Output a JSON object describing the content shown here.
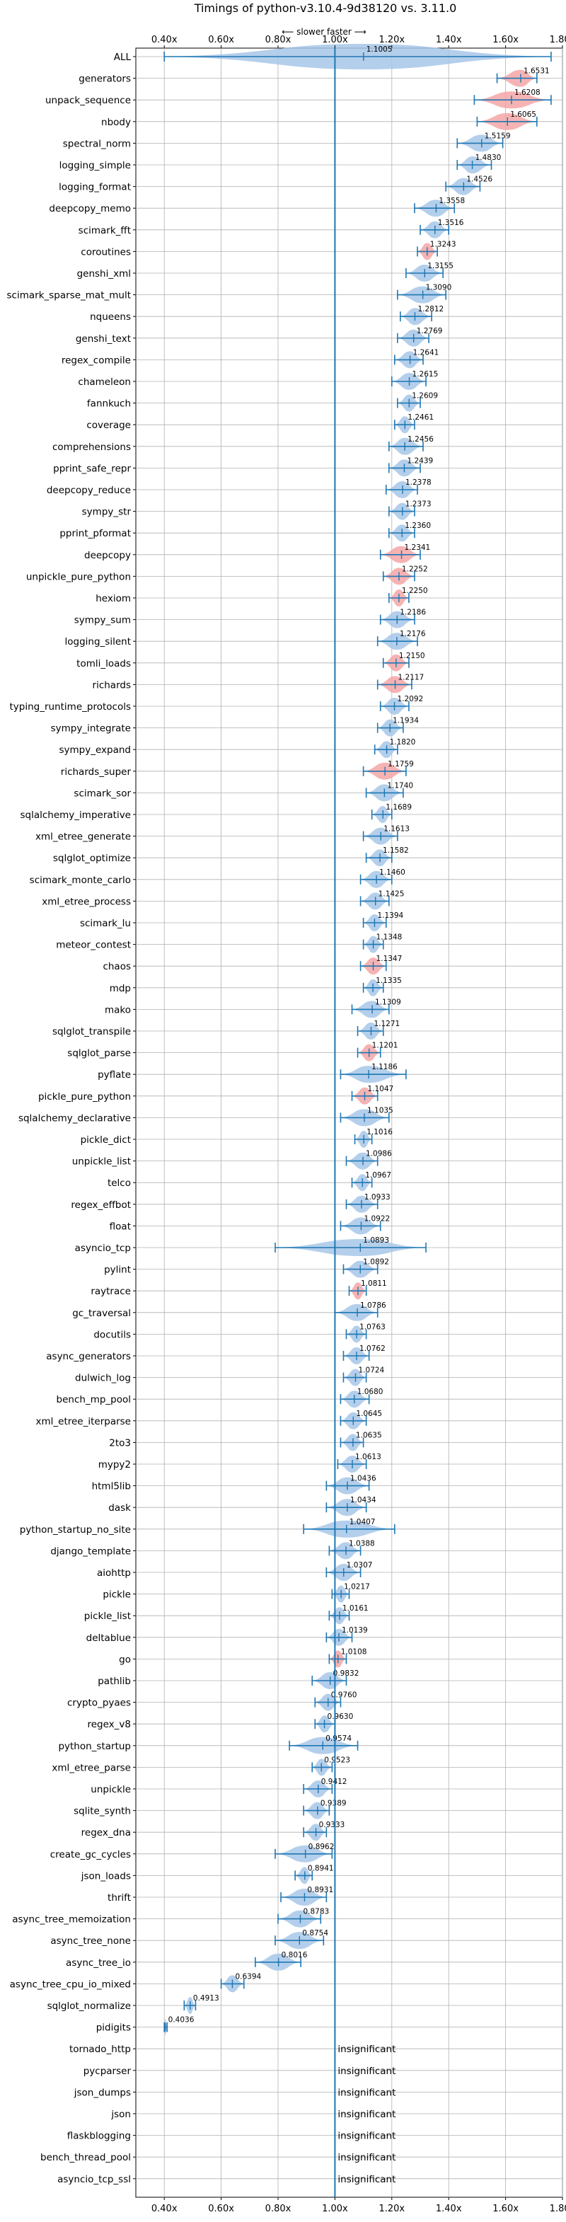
{
  "chart_data": {
    "type": "violin",
    "title": "Timings of python-v3.10.4-9d38120 vs. 3.11.0",
    "subtitle": "⟵ slower   faster ⟶",
    "xlim": [
      0.3,
      1.8
    ],
    "x_ticks": [
      0.4,
      0.6,
      0.8,
      1.0,
      1.2,
      1.4,
      1.6,
      1.8
    ],
    "x_tick_labels": [
      "0.40x",
      "0.60x",
      "0.80x",
      "1.00x",
      "1.20x",
      "1.40x",
      "1.60x",
      "1.80x"
    ],
    "reference_line": 1.0,
    "grid": true,
    "colors": {
      "faster": "#a7c7e7",
      "slower": "#f4a6a6",
      "line": "#1f77b4"
    },
    "insignificant_label": "insignificant",
    "benchmarks": [
      {
        "name": "ALL",
        "value": 1.1005,
        "range": [
          0.4,
          1.76
        ],
        "color": "blue"
      },
      {
        "name": "generators",
        "value": 1.6531,
        "range": [
          1.57,
          1.71
        ],
        "color": "red"
      },
      {
        "name": "unpack_sequence",
        "value": 1.6208,
        "range": [
          1.49,
          1.76
        ],
        "color": "red"
      },
      {
        "name": "nbody",
        "value": 1.6065,
        "range": [
          1.5,
          1.71
        ],
        "color": "red"
      },
      {
        "name": "spectral_norm",
        "value": 1.5159,
        "range": [
          1.43,
          1.59
        ],
        "color": "blue"
      },
      {
        "name": "logging_simple",
        "value": 1.483,
        "range": [
          1.43,
          1.55
        ],
        "color": "blue"
      },
      {
        "name": "logging_format",
        "value": 1.4526,
        "range": [
          1.39,
          1.51
        ],
        "color": "blue"
      },
      {
        "name": "deepcopy_memo",
        "value": 1.3558,
        "range": [
          1.28,
          1.42
        ],
        "color": "blue"
      },
      {
        "name": "scimark_fft",
        "value": 1.3516,
        "range": [
          1.3,
          1.4
        ],
        "color": "blue"
      },
      {
        "name": "coroutines",
        "value": 1.3243,
        "range": [
          1.29,
          1.36
        ],
        "color": "red"
      },
      {
        "name": "genshi_xml",
        "value": 1.3155,
        "range": [
          1.25,
          1.38
        ],
        "color": "blue"
      },
      {
        "name": "scimark_sparse_mat_mult",
        "value": 1.309,
        "range": [
          1.22,
          1.39
        ],
        "color": "blue"
      },
      {
        "name": "nqueens",
        "value": 1.2812,
        "range": [
          1.23,
          1.34
        ],
        "color": "blue"
      },
      {
        "name": "genshi_text",
        "value": 1.2769,
        "range": [
          1.22,
          1.33
        ],
        "color": "blue"
      },
      {
        "name": "regex_compile",
        "value": 1.2641,
        "range": [
          1.21,
          1.31
        ],
        "color": "blue"
      },
      {
        "name": "chameleon",
        "value": 1.2615,
        "range": [
          1.2,
          1.32
        ],
        "color": "blue"
      },
      {
        "name": "fannkuch",
        "value": 1.2609,
        "range": [
          1.22,
          1.3
        ],
        "color": "blue"
      },
      {
        "name": "coverage",
        "value": 1.2461,
        "range": [
          1.21,
          1.28
        ],
        "color": "blue"
      },
      {
        "name": "comprehensions",
        "value": 1.2456,
        "range": [
          1.19,
          1.31
        ],
        "color": "blue"
      },
      {
        "name": "pprint_safe_repr",
        "value": 1.2439,
        "range": [
          1.19,
          1.3
        ],
        "color": "blue"
      },
      {
        "name": "deepcopy_reduce",
        "value": 1.2378,
        "range": [
          1.18,
          1.29
        ],
        "color": "blue"
      },
      {
        "name": "sympy_str",
        "value": 1.2373,
        "range": [
          1.19,
          1.28
        ],
        "color": "blue"
      },
      {
        "name": "pprint_pformat",
        "value": 1.236,
        "range": [
          1.19,
          1.28
        ],
        "color": "blue"
      },
      {
        "name": "deepcopy",
        "value": 1.2341,
        "range": [
          1.16,
          1.3
        ],
        "color": "red"
      },
      {
        "name": "unpickle_pure_python",
        "value": 1.2252,
        "range": [
          1.17,
          1.28
        ],
        "color": "red"
      },
      {
        "name": "hexiom",
        "value": 1.225,
        "range": [
          1.19,
          1.26
        ],
        "color": "red"
      },
      {
        "name": "sympy_sum",
        "value": 1.2186,
        "range": [
          1.16,
          1.28
        ],
        "color": "blue"
      },
      {
        "name": "logging_silent",
        "value": 1.2176,
        "range": [
          1.15,
          1.29
        ],
        "color": "blue"
      },
      {
        "name": "tomli_loads",
        "value": 1.215,
        "range": [
          1.17,
          1.26
        ],
        "color": "red"
      },
      {
        "name": "richards",
        "value": 1.2117,
        "range": [
          1.15,
          1.27
        ],
        "color": "red"
      },
      {
        "name": "typing_runtime_protocols",
        "value": 1.2092,
        "range": [
          1.16,
          1.26
        ],
        "color": "blue"
      },
      {
        "name": "sympy_integrate",
        "value": 1.1934,
        "range": [
          1.15,
          1.24
        ],
        "color": "blue"
      },
      {
        "name": "sympy_expand",
        "value": 1.182,
        "range": [
          1.14,
          1.22
        ],
        "color": "blue"
      },
      {
        "name": "richards_super",
        "value": 1.1759,
        "range": [
          1.1,
          1.25
        ],
        "color": "red"
      },
      {
        "name": "scimark_sor",
        "value": 1.174,
        "range": [
          1.11,
          1.24
        ],
        "color": "blue"
      },
      {
        "name": "sqlalchemy_imperative",
        "value": 1.1689,
        "range": [
          1.13,
          1.2
        ],
        "color": "blue"
      },
      {
        "name": "xml_etree_generate",
        "value": 1.1613,
        "range": [
          1.1,
          1.22
        ],
        "color": "blue"
      },
      {
        "name": "sqlglot_optimize",
        "value": 1.1582,
        "range": [
          1.11,
          1.2
        ],
        "color": "blue"
      },
      {
        "name": "scimark_monte_carlo",
        "value": 1.146,
        "range": [
          1.09,
          1.2
        ],
        "color": "blue"
      },
      {
        "name": "xml_etree_process",
        "value": 1.1425,
        "range": [
          1.09,
          1.19
        ],
        "color": "blue"
      },
      {
        "name": "scimark_lu",
        "value": 1.1394,
        "range": [
          1.1,
          1.18
        ],
        "color": "blue"
      },
      {
        "name": "meteor_contest",
        "value": 1.1348,
        "range": [
          1.1,
          1.17
        ],
        "color": "blue"
      },
      {
        "name": "chaos",
        "value": 1.1347,
        "range": [
          1.09,
          1.18
        ],
        "color": "red"
      },
      {
        "name": "mdp",
        "value": 1.1335,
        "range": [
          1.1,
          1.17
        ],
        "color": "blue"
      },
      {
        "name": "mako",
        "value": 1.1309,
        "range": [
          1.06,
          1.19
        ],
        "color": "blue"
      },
      {
        "name": "sqlglot_transpile",
        "value": 1.1271,
        "range": [
          1.08,
          1.17
        ],
        "color": "blue"
      },
      {
        "name": "sqlglot_parse",
        "value": 1.1201,
        "range": [
          1.08,
          1.16
        ],
        "color": "red"
      },
      {
        "name": "pyflate",
        "value": 1.1186,
        "range": [
          1.02,
          1.25
        ],
        "color": "blue"
      },
      {
        "name": "pickle_pure_python",
        "value": 1.1047,
        "range": [
          1.06,
          1.15
        ],
        "color": "red"
      },
      {
        "name": "sqlalchemy_declarative",
        "value": 1.1035,
        "range": [
          1.02,
          1.19
        ],
        "color": "blue"
      },
      {
        "name": "pickle_dict",
        "value": 1.1016,
        "range": [
          1.07,
          1.13
        ],
        "color": "blue"
      },
      {
        "name": "unpickle_list",
        "value": 1.0986,
        "range": [
          1.04,
          1.15
        ],
        "color": "blue"
      },
      {
        "name": "telco",
        "value": 1.0967,
        "range": [
          1.06,
          1.13
        ],
        "color": "blue"
      },
      {
        "name": "regex_effbot",
        "value": 1.0933,
        "range": [
          1.04,
          1.15
        ],
        "color": "blue"
      },
      {
        "name": "float",
        "value": 1.0922,
        "range": [
          1.02,
          1.16
        ],
        "color": "blue"
      },
      {
        "name": "asyncio_tcp",
        "value": 1.0893,
        "range": [
          0.79,
          1.32
        ],
        "color": "blue"
      },
      {
        "name": "pylint",
        "value": 1.0892,
        "range": [
          1.03,
          1.15
        ],
        "color": "blue"
      },
      {
        "name": "raytrace",
        "value": 1.0811,
        "range": [
          1.05,
          1.11
        ],
        "color": "red"
      },
      {
        "name": "gc_traversal",
        "value": 1.0786,
        "range": [
          1.0,
          1.15
        ],
        "color": "blue"
      },
      {
        "name": "docutils",
        "value": 1.0763,
        "range": [
          1.04,
          1.11
        ],
        "color": "blue"
      },
      {
        "name": "async_generators",
        "value": 1.0762,
        "range": [
          1.03,
          1.12
        ],
        "color": "blue"
      },
      {
        "name": "dulwich_log",
        "value": 1.0724,
        "range": [
          1.03,
          1.11
        ],
        "color": "blue"
      },
      {
        "name": "bench_mp_pool",
        "value": 1.068,
        "range": [
          1.02,
          1.12
        ],
        "color": "blue"
      },
      {
        "name": "xml_etree_iterparse",
        "value": 1.0645,
        "range": [
          1.02,
          1.11
        ],
        "color": "blue"
      },
      {
        "name": "2to3",
        "value": 1.0635,
        "range": [
          1.02,
          1.1
        ],
        "color": "blue"
      },
      {
        "name": "mypy2",
        "value": 1.0613,
        "range": [
          1.01,
          1.11
        ],
        "color": "blue"
      },
      {
        "name": "html5lib",
        "value": 1.0436,
        "range": [
          0.97,
          1.12
        ],
        "color": "blue"
      },
      {
        "name": "dask",
        "value": 1.0434,
        "range": [
          0.97,
          1.11
        ],
        "color": "blue"
      },
      {
        "name": "python_startup_no_site",
        "value": 1.0407,
        "range": [
          0.89,
          1.21
        ],
        "color": "blue"
      },
      {
        "name": "django_template",
        "value": 1.0388,
        "range": [
          0.98,
          1.09
        ],
        "color": "blue"
      },
      {
        "name": "aiohttp",
        "value": 1.0307,
        "range": [
          0.97,
          1.09
        ],
        "color": "blue"
      },
      {
        "name": "pickle",
        "value": 1.0217,
        "range": [
          0.99,
          1.05
        ],
        "color": "blue"
      },
      {
        "name": "pickle_list",
        "value": 1.0161,
        "range": [
          0.98,
          1.05
        ],
        "color": "blue"
      },
      {
        "name": "deltablue",
        "value": 1.0139,
        "range": [
          0.97,
          1.06
        ],
        "color": "blue"
      },
      {
        "name": "go",
        "value": 1.0108,
        "range": [
          0.98,
          1.04
        ],
        "color": "red"
      },
      {
        "name": "pathlib",
        "value": 0.9832,
        "range": [
          0.92,
          1.04
        ],
        "color": "blue"
      },
      {
        "name": "crypto_pyaes",
        "value": 0.976,
        "range": [
          0.93,
          1.02
        ],
        "color": "blue"
      },
      {
        "name": "regex_v8",
        "value": 0.963,
        "range": [
          0.93,
          1.0
        ],
        "color": "blue"
      },
      {
        "name": "python_startup",
        "value": 0.9574,
        "range": [
          0.84,
          1.08
        ],
        "color": "blue"
      },
      {
        "name": "xml_etree_parse",
        "value": 0.9523,
        "range": [
          0.92,
          0.99
        ],
        "color": "blue"
      },
      {
        "name": "unpickle",
        "value": 0.9412,
        "range": [
          0.89,
          0.99
        ],
        "color": "blue"
      },
      {
        "name": "sqlite_synth",
        "value": 0.9389,
        "range": [
          0.89,
          0.98
        ],
        "color": "blue"
      },
      {
        "name": "regex_dna",
        "value": 0.9333,
        "range": [
          0.89,
          0.97
        ],
        "color": "blue"
      },
      {
        "name": "create_gc_cycles",
        "value": 0.8962,
        "range": [
          0.79,
          0.99
        ],
        "color": "blue"
      },
      {
        "name": "json_loads",
        "value": 0.8941,
        "range": [
          0.86,
          0.92
        ],
        "color": "blue"
      },
      {
        "name": "thrift",
        "value": 0.8931,
        "range": [
          0.81,
          0.97
        ],
        "color": "blue"
      },
      {
        "name": "async_tree_memoization",
        "value": 0.8783,
        "range": [
          0.8,
          0.95
        ],
        "color": "blue"
      },
      {
        "name": "async_tree_none",
        "value": 0.8754,
        "range": [
          0.79,
          0.96
        ],
        "color": "blue"
      },
      {
        "name": "async_tree_io",
        "value": 0.8016,
        "range": [
          0.72,
          0.88
        ],
        "color": "blue"
      },
      {
        "name": "async_tree_cpu_io_mixed",
        "value": 0.6394,
        "range": [
          0.6,
          0.68
        ],
        "color": "blue"
      },
      {
        "name": "sqlglot_normalize",
        "value": 0.4913,
        "range": [
          0.47,
          0.51
        ],
        "color": "blue"
      },
      {
        "name": "pidigits",
        "value": 0.4036,
        "range": [
          0.4,
          0.41
        ],
        "color": "blue"
      },
      {
        "name": "tornado_http",
        "insignificant": true
      },
      {
        "name": "pycparser",
        "insignificant": true
      },
      {
        "name": "json_dumps",
        "insignificant": true
      },
      {
        "name": "json",
        "insignificant": true
      },
      {
        "name": "flaskblogging",
        "insignificant": true
      },
      {
        "name": "bench_thread_pool",
        "insignificant": true
      },
      {
        "name": "asyncio_tcp_ssl",
        "insignificant": true
      }
    ]
  }
}
